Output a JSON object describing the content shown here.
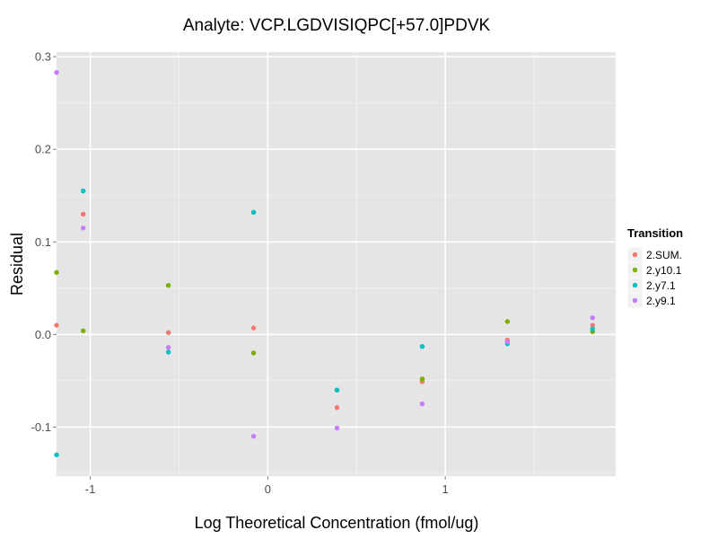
{
  "chart_data": {
    "type": "scatter",
    "title": "Analyte: VCP.LGDVISIQPC[+57.0]PDVK",
    "xlabel": "Log Theoretical Concentration (fmol/ug)",
    "ylabel": "Residual",
    "xlim": [
      -1.19,
      1.96
    ],
    "ylim": [
      -0.153,
      0.305
    ],
    "x_ticks": [
      -1,
      0,
      1
    ],
    "x_tick_labels": [
      "-1",
      "0",
      "1"
    ],
    "y_ticks": [
      -0.1,
      0.0,
      0.1,
      0.2,
      0.3
    ],
    "y_tick_labels": [
      "-0.1",
      "0.0",
      "0.1",
      "0.2",
      "0.3"
    ],
    "grid": true,
    "legend": {
      "title": "Transition",
      "position": "right"
    },
    "series": [
      {
        "name": "2.SUM.",
        "color": "#F8766D",
        "x": [
          -1.19,
          -1.04,
          -0.56,
          -0.08,
          0.39,
          0.87,
          1.35,
          1.83
        ],
        "y": [
          0.01,
          0.13,
          0.002,
          0.007,
          -0.079,
          -0.051,
          -0.006,
          0.01
        ]
      },
      {
        "name": "2.y10.1",
        "color": "#7CAE00",
        "x": [
          -1.19,
          -1.04,
          -0.56,
          -0.08,
          0.39,
          0.87,
          1.35,
          1.83
        ],
        "y": [
          0.067,
          0.004,
          0.053,
          -0.02,
          -0.06,
          -0.048,
          0.014,
          0.003
        ]
      },
      {
        "name": "2.y7.1",
        "color": "#00BFC4",
        "x": [
          -1.19,
          -1.04,
          -0.56,
          -0.08,
          0.39,
          0.87,
          1.35,
          1.83
        ],
        "y": [
          -0.13,
          0.155,
          -0.019,
          0.132,
          -0.06,
          -0.013,
          -0.01,
          0.006
        ]
      },
      {
        "name": "2.y9.1",
        "color": "#C77CFF",
        "x": [
          -1.19,
          -1.04,
          -0.56,
          -0.08,
          0.39,
          0.87,
          1.35,
          1.83
        ],
        "y": [
          0.283,
          0.115,
          -0.014,
          -0.11,
          -0.101,
          -0.075,
          -0.008,
          0.018
        ]
      }
    ]
  }
}
